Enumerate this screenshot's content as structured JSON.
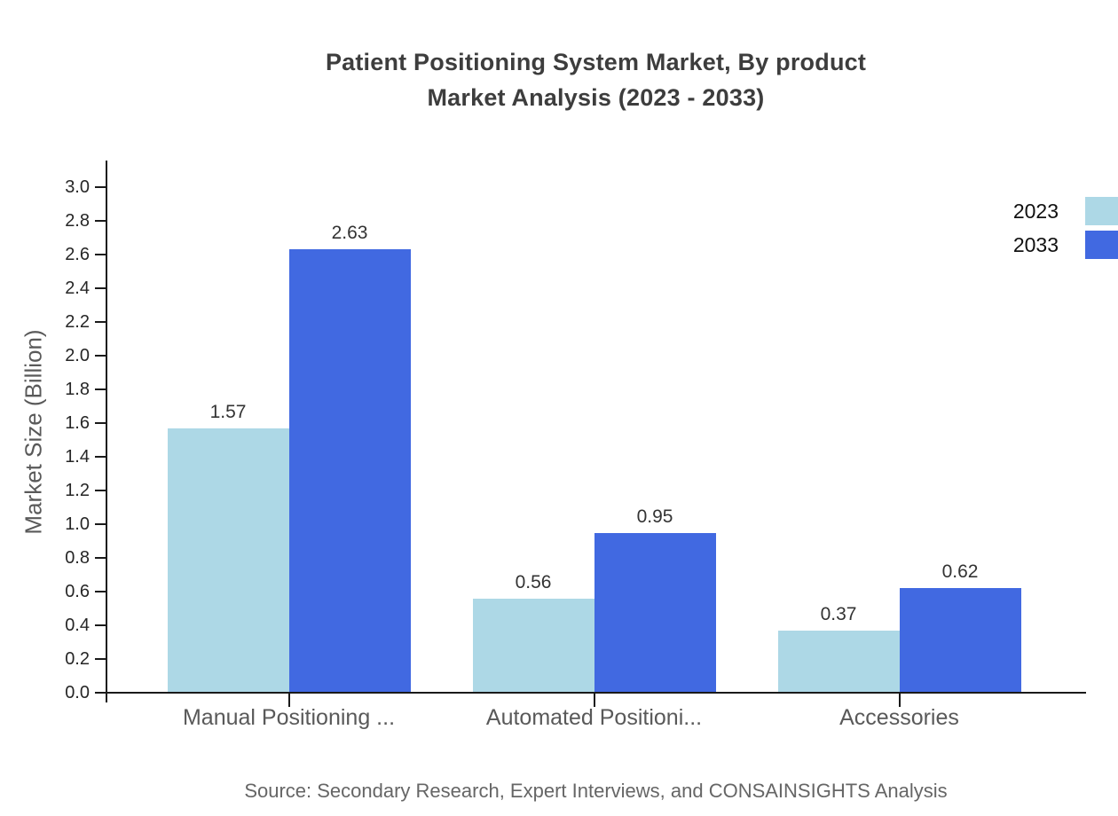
{
  "title": {
    "line1": "Patient Positioning System Market, By product",
    "line2": "Market Analysis (2023 - 2033)"
  },
  "source": "Source: Secondary Research, Expert Interviews, and CONSAINSIGHTS Analysis",
  "colors": {
    "series_2023": "#ADD8E6",
    "series_2033": "#4169E1",
    "axis": "#1a1a1a",
    "title_text": "#3d3d3d",
    "muted_text": "#595959",
    "value_text": "#333333"
  },
  "chart_data": {
    "type": "bar",
    "categories": [
      "Manual Positioning ...",
      "Automated Positioni...",
      "Accessories"
    ],
    "series": [
      {
        "name": "2023",
        "color": "#ADD8E6",
        "values": [
          1.57,
          0.56,
          0.37
        ]
      },
      {
        "name": "2033",
        "color": "#4169E1",
        "values": [
          2.63,
          0.95,
          0.62
        ]
      }
    ],
    "title": "Patient Positioning System Market, By product Market Analysis (2023 - 2033)",
    "xlabel": "",
    "ylabel": "Market Size (Billion)",
    "ylim": [
      0.0,
      3.0
    ],
    "ytick_step": 0.2,
    "grid": false,
    "legend_position": "top-right",
    "value_labels_decimals": 2
  }
}
